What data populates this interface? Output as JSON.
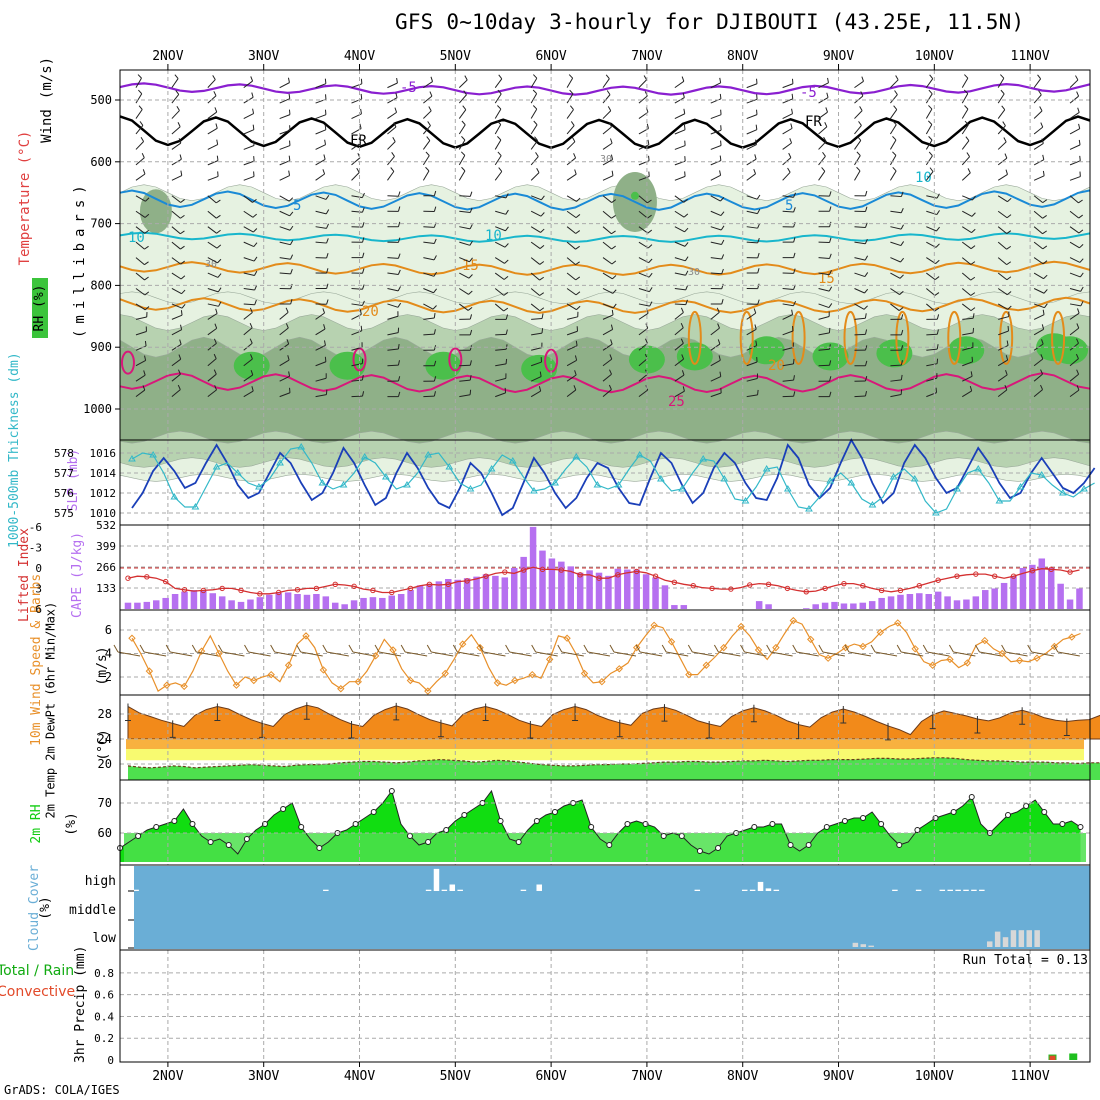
{
  "header": {
    "title": "GFS 0~10day 3-hourly for DJIBOUTI (43.25E, 11.5N)",
    "credit": "GrADS: COLA/IGES"
  },
  "colors": {
    "rh_light": "#e6f2e1",
    "rh_mid": "#b7d2b0",
    "rh_dark": "#8fb088",
    "rh_green": "#4bbf4b",
    "temp_purple": "#8a1fd0",
    "temp_black": "#000000",
    "temp_blue1": "#1a8ad6",
    "temp_cyan": "#18b6cc",
    "temp_orange": "#e38b1a",
    "temp_magenta": "#d8177a",
    "slp": "#1a3fb8",
    "thickness": "#33b8c8",
    "cape": "#b670f0",
    "li": "#d43030",
    "wind": "#e8902a",
    "temp_fill": "#f28a1a",
    "dew_fill": "#4ee04e",
    "rh2m": "#11dd11",
    "cloud": "#6aaed6",
    "precip_rain": "#1fbf1f",
    "precip_conv": "#e24a2a"
  },
  "chart_data": [
    {
      "type": "heatmap",
      "name": "upper-air cross section",
      "ylabel": "Wind",
      "ylabel_temp": "Temperature (°C)",
      "ylabel_units": "(m/s)",
      "ylabel_pressure": "(millibars)",
      "ylabel_rh": "RH (%)",
      "y_ticks": [
        "500",
        "600",
        "700",
        "800",
        "900",
        "1000"
      ],
      "top_dates": [
        "2NOV",
        "3NOV",
        "4NOV",
        "5NOV",
        "6NOV",
        "7NOV",
        "8NOV",
        "9NOV",
        "10NOV",
        "11NOV"
      ],
      "contour_labels": [
        "-5",
        "-5",
        "FR",
        "FR",
        "5",
        "5",
        "10",
        "10",
        "10",
        "15",
        "15",
        "20",
        "20",
        "25",
        "30",
        "30",
        "30"
      ],
      "isotherm_levels_c": [
        -5,
        0,
        5,
        10,
        15,
        20,
        25
      ],
      "rh_levels_pct": [
        30,
        50,
        70,
        90
      ]
    },
    {
      "type": "line",
      "name": "SLP and thickness",
      "ylabel_left": "1000-500mb Thickness (dm)",
      "ylabel_right": "SLP (mb)",
      "left_ticks": [
        "578",
        "577",
        "576",
        "575"
      ],
      "right_ticks": [
        "1016",
        "1014",
        "1012",
        "1010"
      ],
      "series": [
        {
          "name": "SLP (mb)",
          "values": [
            1010.5,
            1012,
            1014.2,
            1015.5,
            1014.2,
            1012.5,
            1013,
            1015,
            1016.8,
            1015,
            1012.8,
            1011.5,
            1012,
            1014,
            1016,
            1015,
            1013,
            1011.3,
            1012,
            1014,
            1016.5,
            1015,
            1012.8,
            1010.8,
            1011.5,
            1014,
            1016,
            1014.5,
            1012.5,
            1011,
            1010.5,
            1012.5,
            1015,
            1014,
            1012,
            1009.8,
            1010.5,
            1013,
            1015.5,
            1014,
            1012,
            1010.5,
            1011.5,
            1013.5,
            1015,
            1014.5,
            1012.5,
            1011,
            1010.8,
            1013.5,
            1016,
            1015,
            1012.8,
            1011,
            1012,
            1014.5,
            1016,
            1015,
            1013,
            1011.5,
            1011.3,
            1013.5,
            1016.8,
            1015.5,
            1012.8,
            1011.5,
            1012.5,
            1015,
            1017.3,
            1015.5,
            1013,
            1011,
            1012,
            1015,
            1016.8,
            1015.5,
            1013.5,
            1012,
            1012.5,
            1014.5,
            1016.5,
            1015,
            1013,
            1011.5,
            1012,
            1014,
            1015.5,
            1014,
            1012.5,
            1012,
            1013,
            1014.5
          ]
        },
        {
          "name": "Thickness (dm)",
          "values": [
            577.7,
            578.0,
            577.9,
            577.0,
            575.8,
            575.3,
            575.3,
            576.3,
            577.3,
            577.5,
            577.0,
            576.5,
            576.3,
            576.7,
            577.5,
            578.2,
            578.3,
            577.5,
            576.5,
            576.2,
            576.4,
            577.0,
            577.8,
            577.5,
            576.8,
            576.2,
            576.4,
            577.0,
            577.9,
            578.0,
            577.3,
            576.5,
            576.2,
            576.4,
            577.2,
            577.9,
            577.6,
            576.8,
            576.1,
            576.2,
            576.5,
            577.2,
            577.8,
            577.3,
            576.4,
            576.2,
            576.4,
            577.2,
            577.9,
            577.6,
            576.7,
            576.1,
            576.2,
            577.0,
            577.7,
            577.6,
            576.7,
            575.7,
            575.6,
            576.3,
            577.2,
            577.3,
            576.2,
            575.3,
            575.2,
            575.8,
            576.6,
            577.0,
            576.5,
            575.7,
            575.4,
            575.8,
            576.8,
            577.2,
            576.7,
            575.6,
            575.0,
            575.2,
            576.2,
            577.0,
            577.2,
            576.5,
            575.6,
            575.6,
            576.3,
            577.0,
            576.9,
            576.4,
            576.0,
            575.8,
            576.2,
            576.5
          ]
        }
      ]
    },
    {
      "type": "bar",
      "name": "CAPE and Lifted Index",
      "ylabel_left": "Lifted Index",
      "ylabel_right": "CAPE (J/kg)",
      "left_ticks": [
        "-6",
        "-3",
        "0",
        "3",
        "6"
      ],
      "right_ticks": [
        "532",
        "399",
        "266",
        "133"
      ],
      "cape": [
        40,
        40,
        45,
        55,
        70,
        95,
        110,
        120,
        115,
        100,
        80,
        55,
        45,
        60,
        75,
        90,
        100,
        105,
        95,
        90,
        95,
        80,
        40,
        30,
        55,
        70,
        75,
        70,
        85,
        95,
        120,
        150,
        160,
        175,
        190,
        185,
        195,
        205,
        220,
        210,
        200,
        260,
        330,
        520,
        370,
        320,
        300,
        270,
        230,
        245,
        230,
        210,
        255,
        250,
        250,
        220,
        200,
        150,
        25,
        25,
        0,
        0,
        0,
        0,
        0,
        0,
        0,
        50,
        30,
        0,
        0,
        0,
        5,
        30,
        40,
        45,
        35,
        35,
        40,
        50,
        70,
        80,
        90,
        95,
        100,
        95,
        110,
        80,
        55,
        60,
        80,
        120,
        130,
        165,
        210,
        260,
        280,
        320,
        260,
        160,
        60,
        130
      ],
      "lifted_index": [
        1.5,
        1.2,
        1.3,
        1.5,
        2.0,
        3.0,
        3.2,
        3.4,
        3.3,
        3.2,
        3.0,
        3.0,
        3.3,
        3.6,
        3.8,
        3.8,
        3.6,
        3.3,
        3.2,
        3.0,
        3.0,
        2.7,
        2.4,
        2.5,
        2.7,
        3.1,
        3.3,
        3.6,
        3.6,
        3.3,
        3.0,
        2.6,
        2.4,
        2.5,
        2.4,
        2.0,
        1.9,
        1.6,
        1.2,
        0.8,
        0.6,
        0.8,
        0.3,
        -0.1,
        0.2,
        0.2,
        0.3,
        0.5,
        1.0,
        1.0,
        1.5,
        1.5,
        1.0,
        0.7,
        0.5,
        0.7,
        1.2,
        1.8,
        2.1,
        2.4,
        2.6,
        2.9,
        3.0,
        3.1,
        3.1,
        2.9,
        2.5,
        2.3,
        2.4,
        2.6,
        3.0,
        3.3,
        3.5,
        3.4,
        3.0,
        2.6,
        2.3,
        2.3,
        2.6,
        3.0,
        3.3,
        3.5,
        3.3,
        3.0,
        2.6,
        2.2,
        1.8,
        1.5,
        1.2,
        1.0,
        0.9,
        0.9,
        1.2,
        1.5,
        1.2,
        0.8,
        0.4,
        0.1,
        0.2,
        0.3,
        0.6,
        0.3
      ]
    },
    {
      "type": "line",
      "name": "10m wind",
      "ylabel": "10m Wind Speed & Barbs",
      "ylabel_units": "(m/s)",
      "y_ticks": [
        "6",
        "4",
        "2"
      ],
      "values": [
        5.3,
        4.0,
        2.5,
        0.8,
        1.3,
        1.5,
        1.2,
        2.5,
        4.2,
        5.5,
        4.0,
        2.5,
        1.3,
        2.0,
        1.7,
        2.0,
        2.2,
        1.6,
        3.0,
        4.8,
        5.5,
        4.5,
        2.6,
        1.5,
        1.0,
        1.6,
        1.6,
        2.5,
        3.8,
        5.2,
        4.3,
        2.7,
        1.7,
        1.5,
        0.8,
        1.6,
        2.3,
        3.5,
        4.8,
        5.6,
        4.5,
        2.8,
        1.5,
        1.3,
        1.7,
        1.9,
        2.2,
        1.9,
        3.5,
        5.5,
        5.3,
        4.0,
        2.3,
        1.5,
        1.6,
        2.3,
        2.7,
        3.2,
        4.5,
        5.5,
        6.4,
        6.2,
        5.0,
        3.6,
        2.2,
        2.2,
        3.0,
        3.7,
        4.5,
        5.5,
        6.3,
        5.5,
        4.3,
        3.5,
        4.5,
        5.7,
        6.8,
        6.5,
        5.2,
        3.9,
        3.6,
        4.0,
        4.5,
        4.8,
        4.6,
        5.0,
        5.8,
        6.3,
        6.6,
        5.8,
        4.4,
        3.3,
        3.0,
        3.4,
        3.5,
        2.8,
        3.2,
        4.7,
        5.1,
        4.4,
        4.0,
        3.3,
        3.4,
        3.3,
        3.6,
        4.0,
        4.6,
        5.2,
        5.4,
        5.7
      ]
    },
    {
      "type": "area",
      "name": "2m temperature",
      "ylabel": "2m Temp 2m DewPt (6hr Min/Max)",
      "ylabel_units": "(°C)",
      "y_ticks": [
        "28",
        "24",
        "20"
      ],
      "temp_c": [
        29.2,
        28.2,
        27.6,
        27.0,
        26.5,
        26.0,
        27.8,
        28.7,
        29.2,
        28.8,
        27.9,
        27.1,
        26.5,
        26.0,
        27.9,
        28.8,
        29.4,
        29.0,
        28.0,
        27.1,
        26.4,
        26.0,
        27.8,
        28.7,
        29.3,
        28.8,
        27.9,
        27.1,
        26.6,
        26.1,
        28.0,
        28.8,
        29.2,
        28.7,
        27.9,
        27.0,
        26.4,
        26.0,
        27.9,
        28.7,
        29.2,
        28.7,
        27.8,
        27.1,
        26.6,
        26.2,
        28.1,
        28.8,
        29.1,
        28.6,
        27.8,
        26.9,
        26.4,
        26.0,
        27.6,
        28.5,
        29.0,
        28.5,
        27.8,
        26.9,
        26.3,
        25.9,
        27.4,
        28.3,
        28.8,
        28.3,
        27.6,
        26.8,
        26.1,
        25.5,
        24.7,
        26.8,
        27.9,
        28.5,
        28.1,
        27.7,
        27.2,
        26.9,
        27.4,
        28.2,
        28.6,
        28.1,
        27.4,
        27.0,
        26.8,
        27.0,
        27.1,
        27.8,
        27.4
      ],
      "dewpoint_c": [
        19.7,
        19.5,
        19.4,
        19.5,
        19.7,
        19.6,
        19.4,
        19.5,
        19.6,
        19.7,
        19.8,
        19.9,
        19.8,
        19.7,
        19.6,
        19.8,
        19.9,
        19.9,
        20.0,
        20.2,
        20.3,
        20.4,
        20.4,
        20.3,
        20.2,
        20.3,
        20.5,
        20.6,
        20.7,
        20.6,
        20.5,
        20.3,
        20.4,
        20.6,
        20.5,
        20.3,
        20.1,
        19.9,
        19.8,
        19.7,
        19.7,
        19.8,
        19.9,
        19.9,
        20.0,
        20.0,
        20.1,
        20.2,
        20.3,
        20.3,
        20.4,
        20.4,
        20.3,
        20.3,
        20.4,
        20.5,
        20.5,
        20.6,
        20.5,
        20.4,
        20.5,
        20.6,
        20.6,
        20.7,
        20.7,
        20.7,
        20.8,
        20.9,
        20.9,
        20.8,
        20.8,
        20.9,
        21.0,
        21.0,
        20.9,
        20.7,
        20.6,
        20.5,
        20.5,
        20.4,
        20.3,
        20.3,
        20.3,
        20.2,
        20.2,
        20.1,
        20.2,
        20.2,
        20.3
      ]
    },
    {
      "type": "area",
      "name": "2m relative humidity",
      "ylabel": "2m RH",
      "ylabel_units": "(%)",
      "y_ticks": [
        "70",
        "60"
      ],
      "values": [
        55,
        57,
        59,
        61,
        62,
        63,
        64,
        68,
        63,
        59,
        57,
        58,
        56,
        53,
        58,
        61,
        63,
        66,
        68,
        70,
        62,
        58,
        55,
        57,
        60,
        61,
        63,
        65,
        67,
        70,
        74,
        63,
        59,
        56,
        57,
        60,
        61,
        64,
        66,
        68,
        70,
        74,
        64,
        58,
        57,
        61,
        64,
        66,
        67,
        69,
        70,
        71,
        62,
        58,
        56,
        60,
        63,
        64,
        63,
        62,
        59,
        60,
        59,
        56,
        54,
        53,
        55,
        59,
        60,
        61,
        62,
        62,
        63,
        63,
        56,
        54,
        56,
        60,
        62,
        63,
        64,
        65,
        65,
        67,
        63,
        59,
        56,
        57,
        61,
        63,
        65,
        66,
        67,
        69,
        72,
        63,
        60,
        63,
        66,
        67,
        69,
        71,
        67,
        63,
        63,
        64,
        62
      ]
    },
    {
      "type": "bar",
      "name": "cloud cover",
      "ylabel": "Cloud Cover",
      "ylabel_units": "(%)",
      "y_ticks": [
        "high",
        "middle",
        "low"
      ],
      "high_pct": [
        0,
        5,
        0,
        0,
        0,
        0,
        0,
        0,
        0,
        0,
        0,
        0,
        0,
        0,
        0,
        0,
        0,
        0,
        0,
        0,
        0,
        0,
        0,
        0,
        0,
        5,
        0,
        0,
        0,
        0,
        0,
        0,
        0,
        0,
        0,
        0,
        0,
        0,
        5,
        85,
        5,
        25,
        5,
        0,
        0,
        0,
        0,
        0,
        0,
        0,
        5,
        0,
        25,
        0,
        0,
        0,
        0,
        0,
        0,
        0,
        0,
        0,
        0,
        0,
        0,
        0,
        0,
        0,
        0,
        0,
        0,
        0,
        5,
        0,
        0,
        0,
        0,
        0,
        5,
        5,
        35,
        10,
        5,
        0,
        0,
        0,
        0,
        0,
        0,
        0,
        0,
        0,
        0,
        0,
        0,
        0,
        0,
        5,
        0,
        0,
        5,
        0,
        0,
        5,
        5,
        5,
        5,
        5,
        5,
        0,
        0,
        0,
        0,
        0,
        0,
        0,
        0,
        0,
        0,
        0,
        0,
        0,
        0
      ],
      "low_pct": [
        0,
        0,
        0,
        0,
        0,
        0,
        0,
        0,
        0,
        0,
        0,
        0,
        0,
        0,
        0,
        0,
        0,
        0,
        0,
        0,
        0,
        0,
        0,
        0,
        0,
        0,
        0,
        0,
        0,
        0,
        0,
        0,
        0,
        0,
        0,
        0,
        0,
        0,
        0,
        0,
        0,
        0,
        0,
        0,
        0,
        0,
        0,
        0,
        0,
        0,
        0,
        0,
        0,
        0,
        0,
        0,
        0,
        0,
        0,
        0,
        0,
        0,
        0,
        0,
        0,
        0,
        0,
        0,
        0,
        0,
        0,
        0,
        0,
        0,
        0,
        0,
        0,
        0,
        0,
        0,
        0,
        0,
        0,
        0,
        0,
        0,
        0,
        0,
        0,
        0,
        0,
        0,
        15,
        10,
        5,
        0,
        0,
        0,
        0,
        0,
        0,
        0,
        0,
        0,
        0,
        0,
        0,
        0,
        0,
        20,
        55,
        35,
        60,
        60,
        60,
        60,
        0
      ]
    },
    {
      "type": "bar",
      "name": "3hr precipitation",
      "ylabel": "3hr Precip (mm)",
      "ylabel_series": [
        "Total / Rain",
        "Convective"
      ],
      "y_ticks": [
        "0.8",
        "0.6",
        "0.4",
        "0.2",
        "0"
      ],
      "annotation": "Run Total = 0.13",
      "ylim": [
        0,
        0.9
      ],
      "total_mm": [
        {
          "t": 86,
          "v": 0.05
        },
        {
          "t": 88,
          "v": 0.06
        }
      ],
      "convective_mm": [
        {
          "t": 86,
          "v": 0.04
        }
      ]
    }
  ],
  "axis": {
    "bottom_dates": [
      "2NOV",
      "3NOV",
      "4NOV",
      "5NOV",
      "6NOV",
      "7NOV",
      "8NOV",
      "9NOV",
      "10NOV",
      "11NOV"
    ],
    "tstart_hours": -12,
    "tend_hours": 231
  }
}
